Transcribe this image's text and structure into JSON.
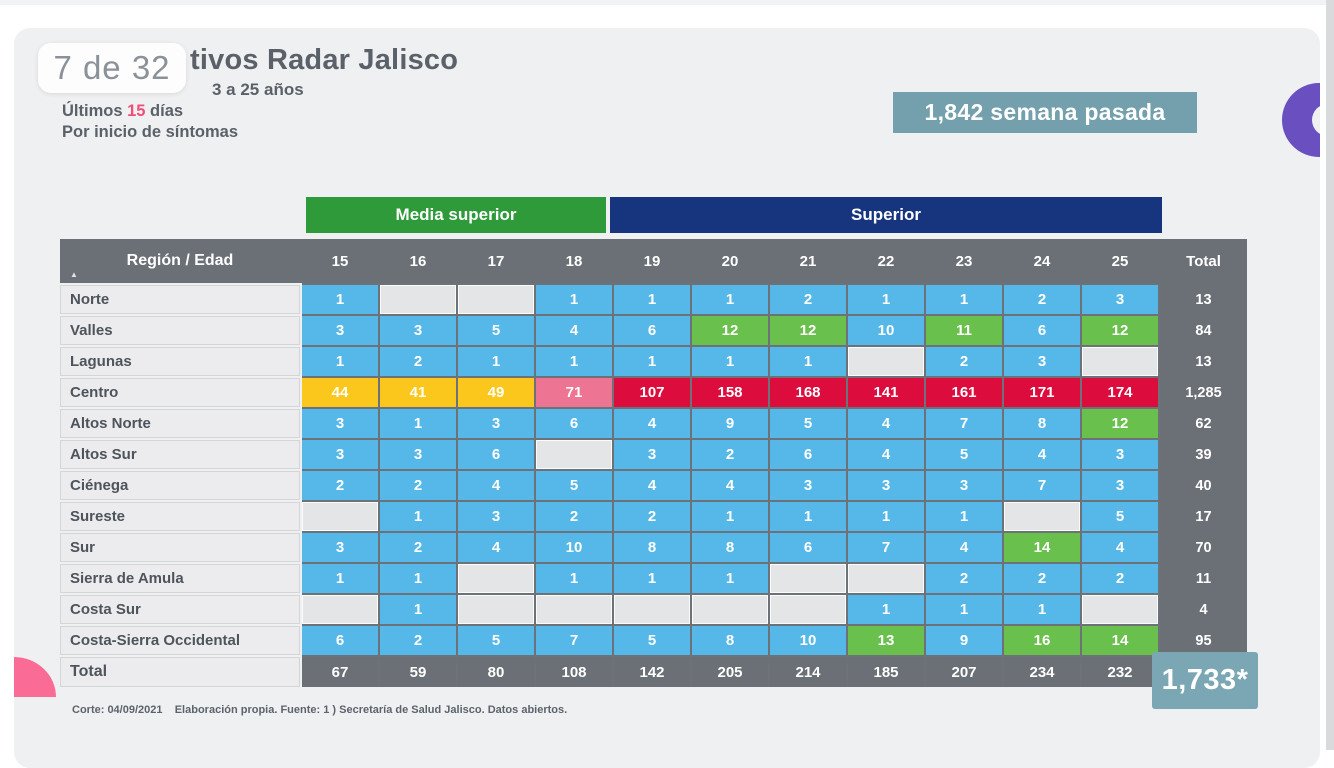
{
  "page_indicator": "7 de 32",
  "header": {
    "title_visible": "tivos Radar Jalisco",
    "subtitle_visible": "3 a 25 años",
    "period_prefix": "Últimos ",
    "period_accent": "15",
    "period_suffix": " días",
    "basis_line": "Por inicio de síntomas",
    "last_week_badge": "1,842 semana pasada"
  },
  "table": {
    "group_media": "Media superior",
    "group_superior": "Superior",
    "header_label": "Región / Edad",
    "total_label": "Total",
    "footer_label": "Total",
    "grand_total": "1,733*"
  },
  "footer": "Corte: 04/09/2021    Elaboración propia. Fuente: 1 ) Secretaría de Salud Jalisco. Datos abiertos.",
  "colors": {
    "card_bg": "#eff0f2",
    "title_gray": "#5b6169",
    "accent_pink": "#f04e78",
    "badge_teal": "#74a0ae",
    "grand_teal": "#7ba6b3",
    "band_green": "#2f9a3a",
    "band_navy": "#17357f",
    "hdr_gray": "#6b7076",
    "grid_gray": "#6d7278",
    "label_bg": "#ececee",
    "cell_blue": "#56b8e8",
    "cell_green": "#69c04c",
    "cell_yellow": "#fbc71d",
    "cell_pink": "#ee7493",
    "cell_red": "#dc0c3c",
    "cell_empty": "#e4e5e7",
    "deco_purple": "#6a4fc1",
    "deco_pink": "#fa6c95"
  },
  "chart_data": {
    "type": "heatmap",
    "title": "tivos Radar Jalisco",
    "subtitle": "3 a 25 años — Últimos 15 días — Por inicio de síntomas",
    "xlabel": "Edad",
    "ylabel": "Región",
    "categories": [
      "15",
      "16",
      "17",
      "18",
      "19",
      "20",
      "21",
      "22",
      "23",
      "24",
      "25"
    ],
    "category_groups": [
      {
        "label": "Media superior",
        "ages": [
          "15",
          "16",
          "17",
          "18"
        ]
      },
      {
        "label": "Superior",
        "ages": [
          "19",
          "20",
          "21",
          "22",
          "23",
          "24",
          "25"
        ]
      }
    ],
    "cell_color_codes": {
      "b": "#56b8e8",
      "g": "#69c04c",
      "y": "#fbc71d",
      "p": "#ee7493",
      "r": "#dc0c3c",
      "e": "#e4e5e7 (empty)"
    },
    "rows": [
      {
        "region": "Norte",
        "values": [
          "1",
          "",
          "",
          "1",
          "1",
          "1",
          "2",
          "1",
          "1",
          "2",
          "3"
        ],
        "colors": [
          "b",
          "e",
          "e",
          "b",
          "b",
          "b",
          "b",
          "b",
          "b",
          "b",
          "b"
        ],
        "total": "13"
      },
      {
        "region": "Valles",
        "values": [
          "3",
          "3",
          "5",
          "4",
          "6",
          "12",
          "12",
          "10",
          "11",
          "6",
          "12"
        ],
        "colors": [
          "b",
          "b",
          "b",
          "b",
          "b",
          "g",
          "g",
          "b",
          "g",
          "b",
          "g"
        ],
        "total": "84"
      },
      {
        "region": "Lagunas",
        "values": [
          "1",
          "2",
          "1",
          "1",
          "1",
          "1",
          "1",
          "",
          "2",
          "3",
          ""
        ],
        "colors": [
          "b",
          "b",
          "b",
          "b",
          "b",
          "b",
          "b",
          "e",
          "b",
          "b",
          "e"
        ],
        "total": "13"
      },
      {
        "region": "Centro",
        "values": [
          "44",
          "41",
          "49",
          "71",
          "107",
          "158",
          "168",
          "141",
          "161",
          "171",
          "174"
        ],
        "colors": [
          "y",
          "y",
          "y",
          "p",
          "r",
          "r",
          "r",
          "r",
          "r",
          "r",
          "r"
        ],
        "total": "1,285"
      },
      {
        "region": "Altos Norte",
        "values": [
          "3",
          "1",
          "3",
          "6",
          "4",
          "9",
          "5",
          "4",
          "7",
          "8",
          "12"
        ],
        "colors": [
          "b",
          "b",
          "b",
          "b",
          "b",
          "b",
          "b",
          "b",
          "b",
          "b",
          "g"
        ],
        "total": "62"
      },
      {
        "region": "Altos Sur",
        "values": [
          "3",
          "3",
          "6",
          "",
          "3",
          "2",
          "6",
          "4",
          "5",
          "4",
          "3"
        ],
        "colors": [
          "b",
          "b",
          "b",
          "e",
          "b",
          "b",
          "b",
          "b",
          "b",
          "b",
          "b"
        ],
        "total": "39"
      },
      {
        "region": "Ciénega",
        "values": [
          "2",
          "2",
          "4",
          "5",
          "4",
          "4",
          "3",
          "3",
          "3",
          "7",
          "3"
        ],
        "colors": [
          "b",
          "b",
          "b",
          "b",
          "b",
          "b",
          "b",
          "b",
          "b",
          "b",
          "b"
        ],
        "total": "40"
      },
      {
        "region": "Sureste",
        "values": [
          "",
          "1",
          "3",
          "2",
          "2",
          "1",
          "1",
          "1",
          "1",
          "",
          "5"
        ],
        "colors": [
          "e",
          "b",
          "b",
          "b",
          "b",
          "b",
          "b",
          "b",
          "b",
          "e",
          "b"
        ],
        "total": "17"
      },
      {
        "region": "Sur",
        "values": [
          "3",
          "2",
          "4",
          "10",
          "8",
          "8",
          "6",
          "7",
          "4",
          "14",
          "4"
        ],
        "colors": [
          "b",
          "b",
          "b",
          "b",
          "b",
          "b",
          "b",
          "b",
          "b",
          "g",
          "b"
        ],
        "total": "70"
      },
      {
        "region": "Sierra de Amula",
        "values": [
          "1",
          "1",
          "",
          "1",
          "1",
          "1",
          "",
          "",
          "2",
          "2",
          "2"
        ],
        "colors": [
          "b",
          "b",
          "e",
          "b",
          "b",
          "b",
          "e",
          "e",
          "b",
          "b",
          "b"
        ],
        "total": "11"
      },
      {
        "region": "Costa Sur",
        "values": [
          "",
          "1",
          "",
          "",
          "",
          "",
          "",
          "1",
          "1",
          "1",
          ""
        ],
        "colors": [
          "e",
          "b",
          "e",
          "e",
          "e",
          "e",
          "e",
          "b",
          "b",
          "b",
          "e"
        ],
        "total": "4"
      },
      {
        "region": "Costa-Sierra Occidental",
        "values": [
          "6",
          "2",
          "5",
          "7",
          "5",
          "8",
          "10",
          "13",
          "9",
          "16",
          "14"
        ],
        "colors": [
          "b",
          "b",
          "b",
          "b",
          "b",
          "b",
          "b",
          "g",
          "b",
          "g",
          "g"
        ],
        "total": "95"
      }
    ],
    "column_totals": [
      "67",
      "59",
      "80",
      "108",
      "142",
      "205",
      "214",
      "185",
      "207",
      "234",
      "232"
    ],
    "grand_total": "1,733*",
    "last_week_total": "1,842"
  }
}
